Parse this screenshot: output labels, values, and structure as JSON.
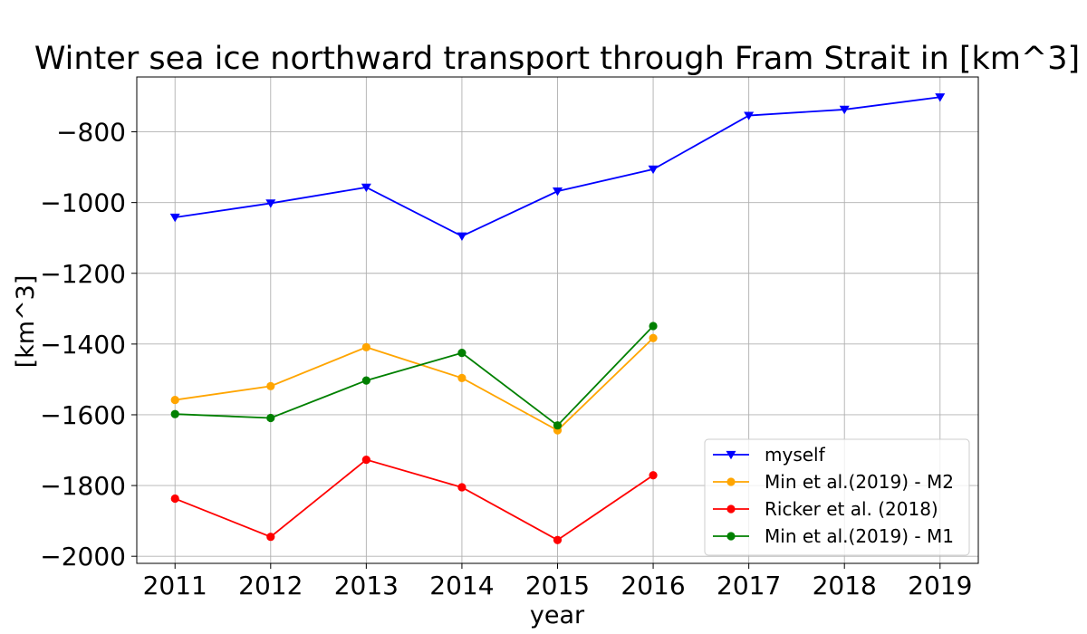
{
  "chart_data": {
    "type": "line",
    "title": "Winter sea ice northward transport through Fram Strait in [km^3]",
    "xlabel": "year",
    "ylabel": "[km^3]",
    "xlim": [
      2010.6,
      2019.4
    ],
    "ylim": [
      -2020,
      -645
    ],
    "xticks": [
      2011,
      2012,
      2013,
      2014,
      2015,
      2016,
      2017,
      2018,
      2019
    ],
    "xtick_labels": [
      "2011",
      "2012",
      "2013",
      "2014",
      "2015",
      "2016",
      "2017",
      "2018",
      "2019"
    ],
    "yticks": [
      -2000,
      -1800,
      -1600,
      -1400,
      -1200,
      -1000,
      -800
    ],
    "ytick_labels": [
      "−2000",
      "−1800",
      "−1600",
      "−1400",
      "−1200",
      "−1000",
      "−800"
    ],
    "grid": true,
    "legend_position": "lower-right",
    "series": [
      {
        "name": "myself",
        "color": "#0000ff",
        "marker": "triangle-down",
        "x": [
          2011,
          2012,
          2013,
          2014,
          2015,
          2016,
          2017,
          2018,
          2019
        ],
        "y": [
          -1042,
          -1002,
          -957,
          -1095,
          -968,
          -906,
          -754,
          -737,
          -702
        ]
      },
      {
        "name": "Min et al.(2019) - M2",
        "color": "#ffa500",
        "marker": "circle",
        "x": [
          2011,
          2012,
          2013,
          2014,
          2015,
          2016
        ],
        "y": [
          -1558,
          -1519,
          -1409,
          -1496,
          -1644,
          -1383
        ]
      },
      {
        "name": "Ricker et al. (2018)",
        "color": "#ff0000",
        "marker": "circle",
        "x": [
          2011,
          2012,
          2013,
          2014,
          2015,
          2016
        ],
        "y": [
          -1837,
          -1945,
          -1727,
          -1805,
          -1954,
          -1771
        ]
      },
      {
        "name": "Min et al.(2019) - M1",
        "color": "#008000",
        "marker": "circle",
        "x": [
          2011,
          2012,
          2013,
          2014,
          2015,
          2016
        ],
        "y": [
          -1598,
          -1609,
          -1503,
          -1425,
          -1630,
          -1349
        ]
      }
    ]
  }
}
